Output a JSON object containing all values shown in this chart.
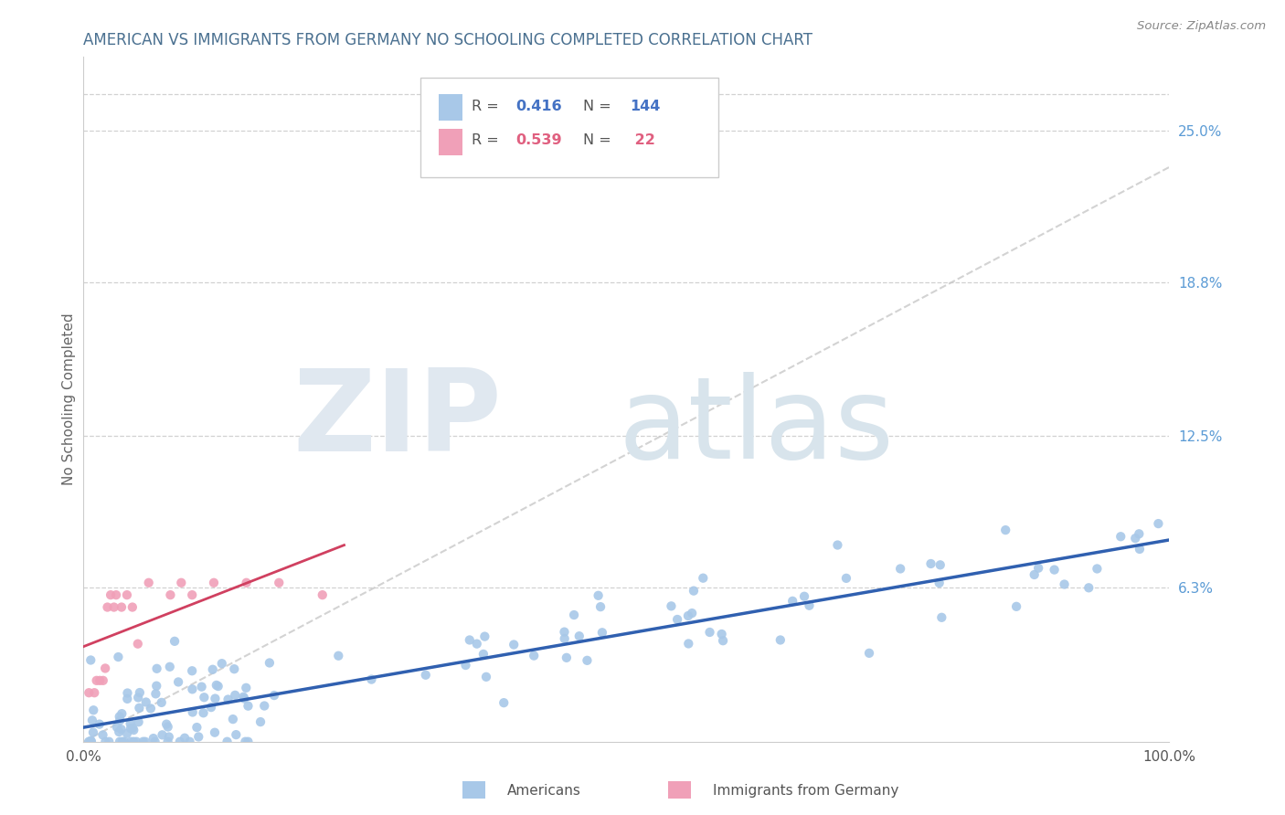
{
  "title": "AMERICAN VS IMMIGRANTS FROM GERMANY NO SCHOOLING COMPLETED CORRELATION CHART",
  "source": "Source: ZipAtlas.com",
  "ylabel_label": "No Schooling Completed",
  "right_yticks": [
    "25.0%",
    "18.8%",
    "12.5%",
    "6.3%"
  ],
  "right_ytick_vals": [
    0.25,
    0.188,
    0.125,
    0.063
  ],
  "xlim": [
    0.0,
    1.0
  ],
  "ylim": [
    0.0,
    0.28
  ],
  "title_color": "#4a7090",
  "source_color": "#888888",
  "right_label_color": "#5b9bd5",
  "ylabel_color": "#666666",
  "background_color": "#ffffff",
  "grid_color": "#cccccc",
  "americans_color": "#a8c8e8",
  "americans_line_color": "#3060b0",
  "immigrants_color": "#f0a0b8",
  "immigrants_line_color": "#d04060",
  "americans_R": 0.416,
  "americans_N": 144,
  "immigrants_R": 0.539,
  "immigrants_N": 22,
  "legend_R_color": "#4472c4",
  "legend_R2_color": "#e06080",
  "dashed_line_color": "#c8c8c8",
  "watermark_zip_color": "#e0e8f0",
  "watermark_atlas_color": "#d8e4ec"
}
